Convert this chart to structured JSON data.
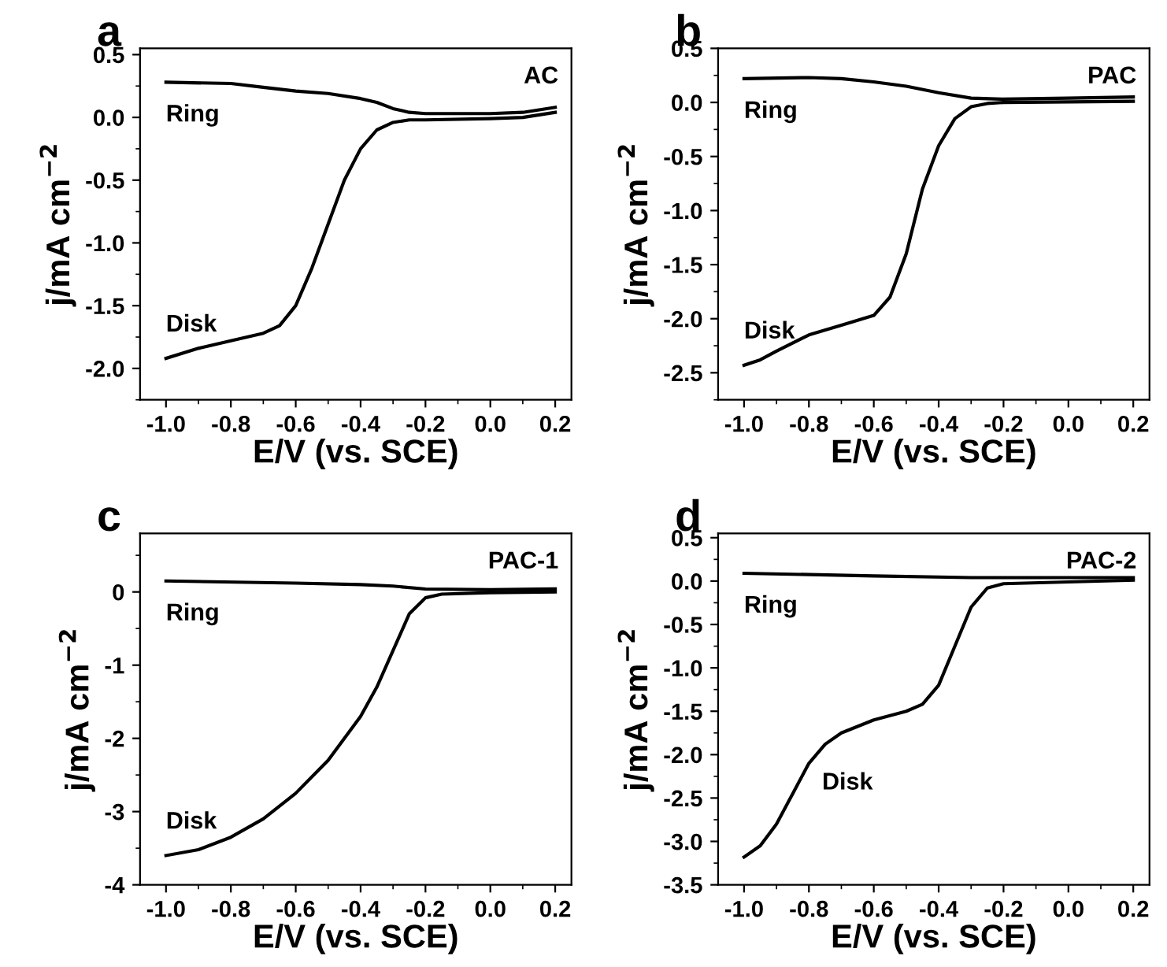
{
  "chart_data": [
    {
      "type": "line",
      "title": "a",
      "xlabel": "E/V (vs. SCE)",
      "ylabel": "j/mA cm$^{−2}$",
      "annotations": [
        "AC"
      ],
      "xlim": [
        -1.08,
        0.25
      ],
      "ylim": [
        -2.25,
        0.55
      ],
      "xticks": [
        {
          "value": -1.0,
          "label": "-1.0"
        },
        {
          "value": -0.8,
          "label": "-0.8"
        },
        {
          "value": -0.6,
          "label": "-0.6"
        },
        {
          "value": -0.4,
          "label": "-0.4"
        },
        {
          "value": -0.2,
          "label": "-0.2"
        },
        {
          "value": 0.0,
          "label": "0.0"
        },
        {
          "value": 0.2,
          "label": "0.2"
        }
      ],
      "yticks": [
        {
          "value": 0.5,
          "label": "0.5"
        },
        {
          "value": 0.0,
          "label": "0.0"
        },
        {
          "value": -0.5,
          "label": "-0.5"
        },
        {
          "value": -1.0,
          "label": "-1.0"
        },
        {
          "value": -1.5,
          "label": "-1.5"
        },
        {
          "value": -2.0,
          "label": "-2.0"
        }
      ],
      "grid": false,
      "legend": false,
      "series": [
        {
          "name": "Ring",
          "color": "#000000",
          "x": [
            -1.0,
            -0.8,
            -0.7,
            -0.6,
            -0.5,
            -0.4,
            -0.35,
            -0.3,
            -0.25,
            -0.2,
            0.0,
            0.1,
            0.2
          ],
          "values": [
            0.28,
            0.27,
            0.24,
            0.21,
            0.19,
            0.15,
            0.12,
            0.07,
            0.04,
            0.03,
            0.03,
            0.04,
            0.08
          ]
        },
        {
          "name": "Disk",
          "color": "#000000",
          "x": [
            -1.0,
            -0.9,
            -0.8,
            -0.7,
            -0.65,
            -0.6,
            -0.55,
            -0.5,
            -0.45,
            -0.4,
            -0.35,
            -0.3,
            -0.25,
            -0.2,
            0.0,
            0.1,
            0.2
          ],
          "values": [
            -1.92,
            -1.84,
            -1.78,
            -1.72,
            -1.66,
            -1.5,
            -1.2,
            -0.85,
            -0.5,
            -0.25,
            -0.1,
            -0.04,
            -0.02,
            -0.02,
            -0.01,
            0.0,
            0.04
          ]
        }
      ]
    },
    {
      "type": "line",
      "title": "b",
      "xlabel": "E/V (vs. SCE)",
      "ylabel": "j/mA cm$^{−2}$",
      "annotations": [
        "PAC"
      ],
      "xlim": [
        -1.08,
        0.25
      ],
      "ylim": [
        -2.75,
        0.5
      ],
      "xticks": [
        {
          "value": -1.0,
          "label": "-1.0"
        },
        {
          "value": -0.8,
          "label": "-0.8"
        },
        {
          "value": -0.6,
          "label": "-0.6"
        },
        {
          "value": -0.4,
          "label": "-0.4"
        },
        {
          "value": -0.2,
          "label": "-0.2"
        },
        {
          "value": 0.0,
          "label": "0.0"
        },
        {
          "value": 0.2,
          "label": "0.2"
        }
      ],
      "yticks": [
        {
          "value": 0.5,
          "label": "0.5"
        },
        {
          "value": 0.0,
          "label": "0.0"
        },
        {
          "value": -0.5,
          "label": "-0.5"
        },
        {
          "value": -1.0,
          "label": "-1.0"
        },
        {
          "value": -1.5,
          "label": "-1.5"
        },
        {
          "value": -2.0,
          "label": "-2.0"
        },
        {
          "value": -2.5,
          "label": "-2.5"
        }
      ],
      "grid": false,
      "legend": false,
      "series": [
        {
          "name": "Ring",
          "color": "#000000",
          "x": [
            -1.0,
            -0.8,
            -0.7,
            -0.6,
            -0.5,
            -0.4,
            -0.3,
            -0.2,
            0.0,
            0.2
          ],
          "values": [
            0.22,
            0.23,
            0.22,
            0.19,
            0.15,
            0.09,
            0.04,
            0.03,
            0.04,
            0.05
          ]
        },
        {
          "name": "Disk",
          "color": "#000000",
          "x": [
            -1.0,
            -0.95,
            -0.9,
            -0.8,
            -0.7,
            -0.6,
            -0.55,
            -0.5,
            -0.45,
            -0.4,
            -0.35,
            -0.3,
            -0.25,
            -0.2,
            0.2
          ],
          "values": [
            -2.43,
            -2.38,
            -2.3,
            -2.15,
            -2.06,
            -1.97,
            -1.8,
            -1.4,
            -0.8,
            -0.4,
            -0.15,
            -0.04,
            -0.01,
            0.0,
            0.01
          ]
        }
      ]
    },
    {
      "type": "line",
      "title": "c",
      "xlabel": "E/V (vs. SCE)",
      "ylabel": "j/mA cm$^{−2}$",
      "annotations": [
        "PAC-1"
      ],
      "xlim": [
        -1.08,
        0.25
      ],
      "ylim": [
        -4,
        0.8
      ],
      "xticks": [
        {
          "value": -1.0,
          "label": "-1.0"
        },
        {
          "value": -0.8,
          "label": "-0.8"
        },
        {
          "value": -0.6,
          "label": "-0.6"
        },
        {
          "value": -0.4,
          "label": "-0.4"
        },
        {
          "value": -0.2,
          "label": "-0.2"
        },
        {
          "value": 0.0,
          "label": "0.0"
        },
        {
          "value": 0.2,
          "label": "0.2"
        }
      ],
      "yticks": [
        0,
        -1,
        -2,
        -3,
        -4
      ],
      "grid": false,
      "legend": false,
      "series": [
        {
          "name": "Ring",
          "color": "#000000",
          "x": [
            -1.0,
            -0.6,
            -0.4,
            -0.3,
            -0.2,
            0.0,
            0.2
          ],
          "values": [
            0.15,
            0.12,
            0.1,
            0.08,
            0.04,
            0.03,
            0.04
          ]
        },
        {
          "name": "Disk",
          "color": "#000000",
          "x": [
            -1.0,
            -0.9,
            -0.8,
            -0.7,
            -0.6,
            -0.5,
            -0.4,
            -0.35,
            -0.3,
            -0.25,
            -0.2,
            -0.15,
            0.0,
            0.2
          ],
          "values": [
            -3.6,
            -3.52,
            -3.35,
            -3.1,
            -2.75,
            -2.3,
            -1.7,
            -1.3,
            -0.8,
            -0.3,
            -0.08,
            -0.03,
            -0.01,
            0.0
          ]
        }
      ]
    },
    {
      "type": "line",
      "title": "d",
      "xlabel": "E/V (vs. SCE)",
      "ylabel": "j/mA cm$^{−2}$",
      "annotations": [
        "PAC-2"
      ],
      "xlim": [
        -1.08,
        0.25
      ],
      "ylim": [
        -3.5,
        0.55
      ],
      "xticks": [
        {
          "value": -1.0,
          "label": "-1.0"
        },
        {
          "value": -0.8,
          "label": "-0.8"
        },
        {
          "value": -0.6,
          "label": "-0.6"
        },
        {
          "value": -0.4,
          "label": "-0.4"
        },
        {
          "value": -0.2,
          "label": "-0.2"
        },
        {
          "value": 0.0,
          "label": "0.0"
        },
        {
          "value": 0.2,
          "label": "0.2"
        }
      ],
      "yticks": [
        {
          "value": 0.5,
          "label": "0.5"
        },
        {
          "value": 0.0,
          "label": "0.0"
        },
        {
          "value": -0.5,
          "label": "-0.5"
        },
        {
          "value": -1.0,
          "label": "-1.0"
        },
        {
          "value": -1.5,
          "label": "-1.5"
        },
        {
          "value": -2.0,
          "label": "-2.0"
        },
        {
          "value": -2.5,
          "label": "-2.5"
        },
        {
          "value": -3.0,
          "label": "-3.0"
        },
        {
          "value": -3.5,
          "label": "-3.5"
        }
      ],
      "grid": false,
      "legend": false,
      "series": [
        {
          "name": "Ring",
          "color": "#000000",
          "x": [
            -1.0,
            -0.6,
            -0.3,
            0.0,
            0.2
          ],
          "values": [
            0.09,
            0.06,
            0.04,
            0.04,
            0.04
          ]
        },
        {
          "name": "Disk",
          "color": "#000000",
          "x": [
            -1.0,
            -0.95,
            -0.9,
            -0.85,
            -0.8,
            -0.75,
            -0.7,
            -0.6,
            -0.5,
            -0.45,
            -0.4,
            -0.35,
            -0.3,
            -0.25,
            -0.2,
            0.0,
            0.2
          ],
          "values": [
            -3.18,
            -3.05,
            -2.8,
            -2.45,
            -2.1,
            -1.88,
            -1.75,
            -1.6,
            -1.5,
            -1.42,
            -1.2,
            -0.75,
            -0.3,
            -0.08,
            -0.03,
            -0.01,
            0.01
          ]
        }
      ]
    }
  ]
}
